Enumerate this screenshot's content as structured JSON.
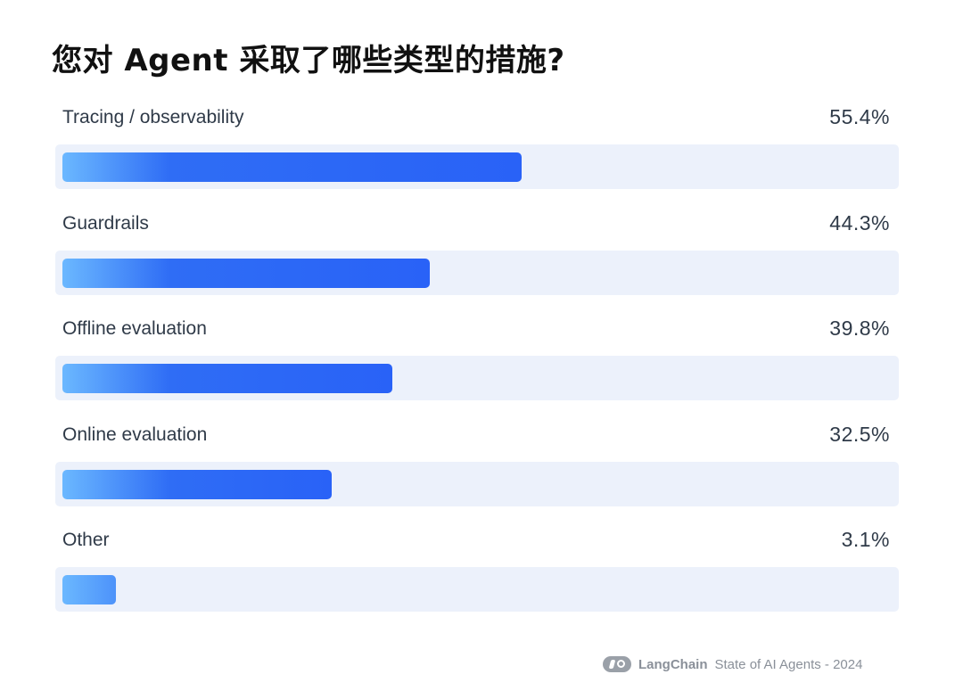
{
  "title": "您对 Agent 采取了哪些类型的措施?",
  "footer": {
    "brand": "LangChain",
    "caption": "State of AI Agents - 2024"
  },
  "colors": {
    "bar_start": "#6bb8ff",
    "bar_end": "#2962f7",
    "track": "#ecf1fb"
  },
  "chart_data": {
    "type": "bar",
    "orientation": "horizontal",
    "title": "您对 Agent 采取了哪些类型的措施?",
    "categories": [
      "Tracing / observability",
      "Guardrails",
      "Offline evaluation",
      "Online evaluation",
      "Other"
    ],
    "values": [
      55.4,
      44.3,
      39.8,
      32.5,
      3.1
    ],
    "value_labels": [
      "55.4%",
      "44.3%",
      "39.8%",
      "32.5%",
      "3.1%"
    ],
    "xlim": [
      0,
      100
    ],
    "grid": false,
    "legend": "none"
  }
}
